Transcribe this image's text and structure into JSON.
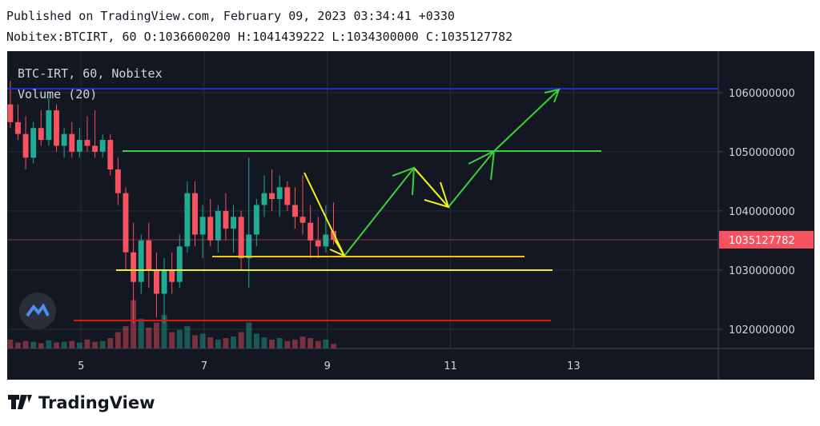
{
  "header": {
    "published": "Published on TradingView.com, February 09, 2023 03:34:41 +0330",
    "instrument": "Nobitex:BTCIRT, 60",
    "ohlc_labels": [
      "O:",
      "H:",
      "L:",
      "C:"
    ]
  },
  "chart_data": {
    "type": "candlestick",
    "title": "BTC-IRT, 60, Nobitex",
    "volume_label": "Volume (20)",
    "x": [
      3.85,
      3.975,
      4.1,
      4.225,
      4.35,
      4.475,
      4.6,
      4.725,
      4.85,
      4.975,
      5.1,
      5.225,
      5.35,
      5.475,
      5.6,
      5.725,
      5.85,
      5.975,
      6.1,
      6.225,
      6.35,
      6.475,
      6.6,
      6.725,
      6.85,
      6.975,
      7.1,
      7.225,
      7.35,
      7.475,
      7.6,
      7.725,
      7.85,
      7.975,
      8.1,
      8.225,
      8.35,
      8.475,
      8.6,
      8.725,
      8.85,
      8.975,
      9.1
    ],
    "open": [
      1058000000,
      1055000000,
      1053000000,
      1049000000,
      1054000000,
      1052000000,
      1057000000,
      1051000000,
      1053000000,
      1050000000,
      1052000000,
      1051000000,
      1050000000,
      1052000000,
      1047000000,
      1043000000,
      1033000000,
      1028000000,
      1035000000,
      1030000000,
      1026000000,
      1030000000,
      1028000000,
      1034000000,
      1043000000,
      1036000000,
      1039000000,
      1035000000,
      1040000000,
      1037000000,
      1039000000,
      1032000000,
      1036000000,
      1041000000,
      1043000000,
      1042000000,
      1044000000,
      1041000000,
      1039000000,
      1038000000,
      1035000000,
      1034000000,
      1036600200
    ],
    "high": [
      1062000000,
      1058000000,
      1056000000,
      1055000000,
      1057000000,
      1059000000,
      1058000000,
      1054000000,
      1055000000,
      1054000000,
      1056000000,
      1057000000,
      1053000000,
      1053000000,
      1049000000,
      1044000000,
      1038000000,
      1036000000,
      1038000000,
      1033000000,
      1032000000,
      1033000000,
      1036000000,
      1045000000,
      1045000000,
      1041000000,
      1042000000,
      1041000000,
      1043000000,
      1041000000,
      1040000000,
      1049000000,
      1042000000,
      1046000000,
      1047000000,
      1046000000,
      1045000000,
      1044000000,
      1046000000,
      1041000000,
      1039000000,
      1041000000,
      1041439222
    ],
    "low": [
      1054000000,
      1052000000,
      1047000000,
      1048000000,
      1051000000,
      1051000000,
      1050000000,
      1049000000,
      1049000000,
      1049000000,
      1050000000,
      1049000000,
      1049000000,
      1046000000,
      1041000000,
      1030000000,
      1021000000,
      1026000000,
      1027000000,
      1022000000,
      1021000000,
      1026000000,
      1027000000,
      1033000000,
      1034000000,
      1032000000,
      1034000000,
      1033000000,
      1035000000,
      1033000000,
      1030000000,
      1027000000,
      1034000000,
      1039000000,
      1040000000,
      1039000000,
      1040000000,
      1037000000,
      1036000000,
      1032000000,
      1032000000,
      1033000000,
      1034300000
    ],
    "close": [
      1055000000,
      1053000000,
      1049000000,
      1054000000,
      1052000000,
      1057000000,
      1051000000,
      1053000000,
      1050000000,
      1052000000,
      1051000000,
      1050000000,
      1052000000,
      1047000000,
      1043000000,
      1033000000,
      1028000000,
      1035000000,
      1030000000,
      1026000000,
      1030000000,
      1028000000,
      1034000000,
      1043000000,
      1036000000,
      1039000000,
      1035000000,
      1040000000,
      1037000000,
      1039000000,
      1032000000,
      1036000000,
      1041000000,
      1043000000,
      1042000000,
      1044000000,
      1041000000,
      1039000000,
      1038000000,
      1035000000,
      1034000000,
      1036000000,
      1035127782
    ],
    "volume": [
      12,
      8,
      10,
      9,
      7,
      11,
      8,
      9,
      10,
      8,
      12,
      9,
      10,
      14,
      22,
      30,
      65,
      40,
      28,
      35,
      45,
      22,
      25,
      30,
      18,
      20,
      15,
      12,
      14,
      16,
      22,
      35,
      20,
      15,
      12,
      14,
      10,
      12,
      16,
      14,
      10,
      12,
      6
    ],
    "volume_lim": [
      0,
      400
    ],
    "up_color": "#22ab94",
    "down_color": "#f7525f",
    "xlim": [
      3.8,
      15.35
    ],
    "xticks": [
      5,
      7,
      9,
      11,
      13
    ],
    "ylim": [
      1016750000,
      1067000000
    ],
    "yticks": [
      1020000000,
      1030000000,
      1040000000,
      1050000000,
      1060000000
    ],
    "grid": true
  },
  "footer": {
    "brand": "TradingView"
  }
}
